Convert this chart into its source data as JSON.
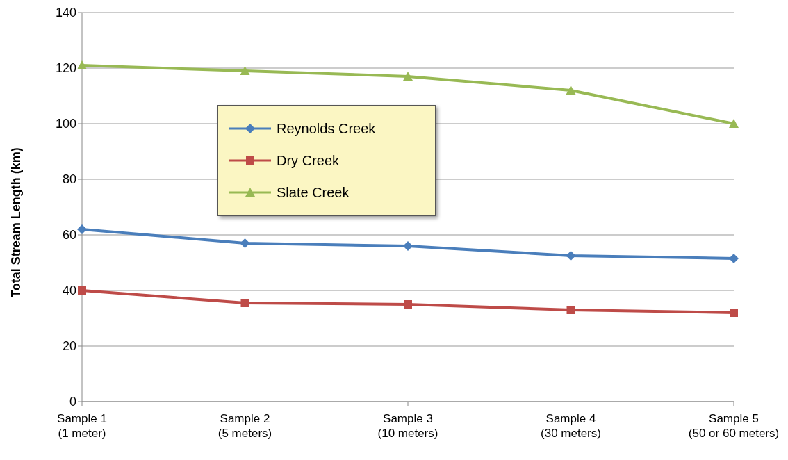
{
  "chart_data": {
    "type": "line",
    "ylabel": "Total Stream Length (km)",
    "categories": [
      "Sample 1\n(1 meter)",
      "Sample 2\n(5 meters)",
      "Sample 3\n(10 meters)",
      "Sample 4\n(30 meters)",
      "Sample 5\n(50 or 60 meters)"
    ],
    "series": [
      {
        "name": "Reynolds Creek",
        "color": "#4a7ebb",
        "marker": "diamond",
        "values": [
          62,
          57,
          56,
          52.5,
          51.5
        ]
      },
      {
        "name": "Dry Creek",
        "color": "#be4b48",
        "marker": "square",
        "values": [
          40,
          35.5,
          35,
          33,
          32
        ]
      },
      {
        "name": "Slate Creek",
        "color": "#98b954",
        "marker": "triangle",
        "values": [
          121,
          119,
          117,
          112,
          100
        ]
      }
    ],
    "ylim": [
      0,
      140
    ],
    "yticks": [
      0,
      20,
      40,
      60,
      80,
      100,
      120,
      140
    ],
    "grid": "y",
    "legend": "top left"
  }
}
